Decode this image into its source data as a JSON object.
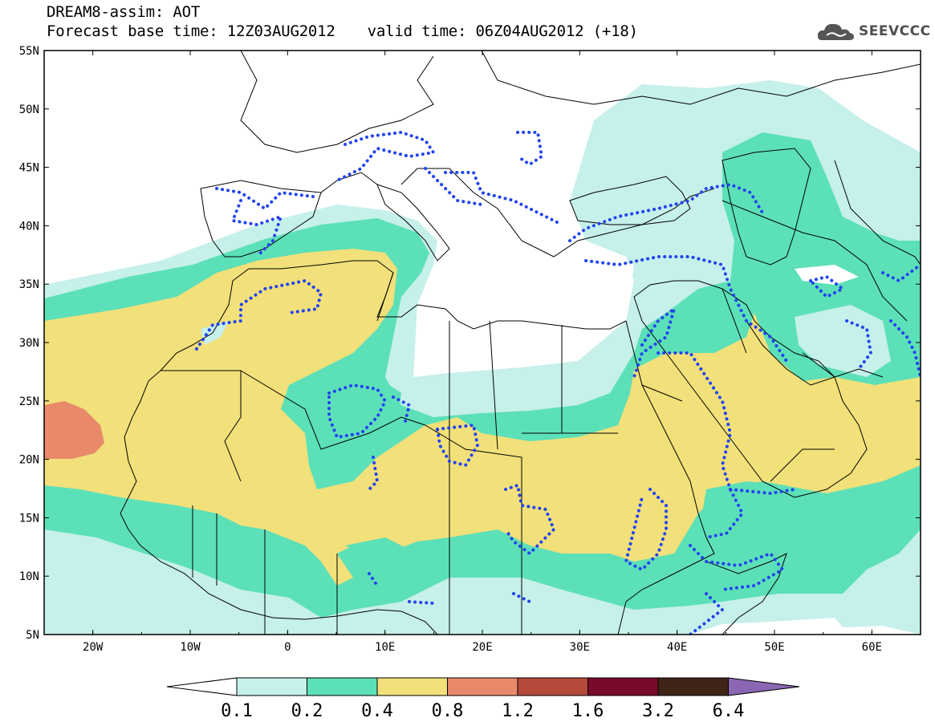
{
  "header": {
    "title": "DREAM8-assim: AOT",
    "base_time": "Forecast base time: 12Z03AUG2012",
    "valid_time": "valid time: 06Z04AUG2012 (+18)",
    "logo_text": "SEEVCCC"
  },
  "map": {
    "variable": "AOT",
    "lon_range": [
      -25,
      65
    ],
    "lat_range": [
      5,
      55
    ],
    "lat_labels": [
      "55N",
      "50N",
      "45N",
      "40N",
      "35N",
      "30N",
      "25N",
      "20N",
      "15N",
      "10N",
      "5N"
    ],
    "lon_labels": [
      "20W",
      "10W",
      "0",
      "10E",
      "20E",
      "30E",
      "40E",
      "50E",
      "60E"
    ],
    "observation_contour_color": "#2244ee",
    "border_color": "#000000"
  },
  "colorbar": {
    "levels": [
      "0.1",
      "0.2",
      "0.4",
      "0.8",
      "1.2",
      "1.6",
      "3.2",
      "6.4"
    ],
    "colors": [
      "#ffffff",
      "#c6f0ea",
      "#5ce0b8",
      "#f2e07a",
      "#e8896a",
      "#b54a3a",
      "#7a0a2a",
      "#3f2418",
      "#8b67b3"
    ]
  }
}
